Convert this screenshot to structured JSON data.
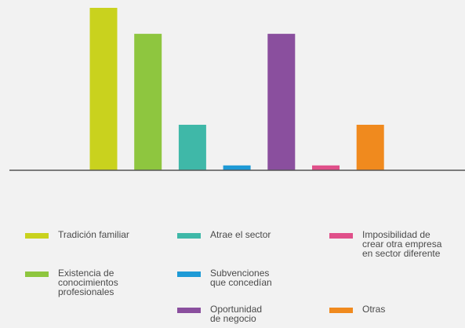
{
  "chart_data": {
    "type": "bar",
    "title": "",
    "xlabel": "",
    "ylabel": "",
    "ylim": [
      0,
      100
    ],
    "grid": false,
    "legend_position": "bottom",
    "categories": [
      "Tradición familiar",
      "Existencia de\nconocimientos\nprofesionales",
      "Atrae el sector",
      "Subvenciones\nque concedían",
      "Oportunidad\nde negocio",
      "Imposibilidad de\ncrear otra empresa\nen sector diferente",
      "Otras"
    ],
    "values": [
      100,
      84,
      28,
      3,
      84,
      3,
      28
    ],
    "colors": [
      "#c9d21e",
      "#8ec63f",
      "#3fb8a8",
      "#1e9ad6",
      "#8a4f9e",
      "#e0508a",
      "#f08a1e"
    ]
  },
  "legend": {
    "items": [
      {
        "label": "Tradición familiar",
        "color": "#c9d21e"
      },
      {
        "label": "Existencia de\nconocimientos\nprofesionales",
        "color": "#8ec63f"
      },
      {
        "label": "Atrae el sector",
        "color": "#3fb8a8"
      },
      {
        "label": "Subvenciones\nque concedían",
        "color": "#1e9ad6"
      },
      {
        "label": "Oportunidad\nde negocio",
        "color": "#8a4f9e"
      },
      {
        "label": "Imposibilidad de\ncrear otra empresa\nen sector diferente",
        "color": "#e0508a"
      },
      {
        "label": "Otras",
        "color": "#f08a1e"
      }
    ]
  }
}
